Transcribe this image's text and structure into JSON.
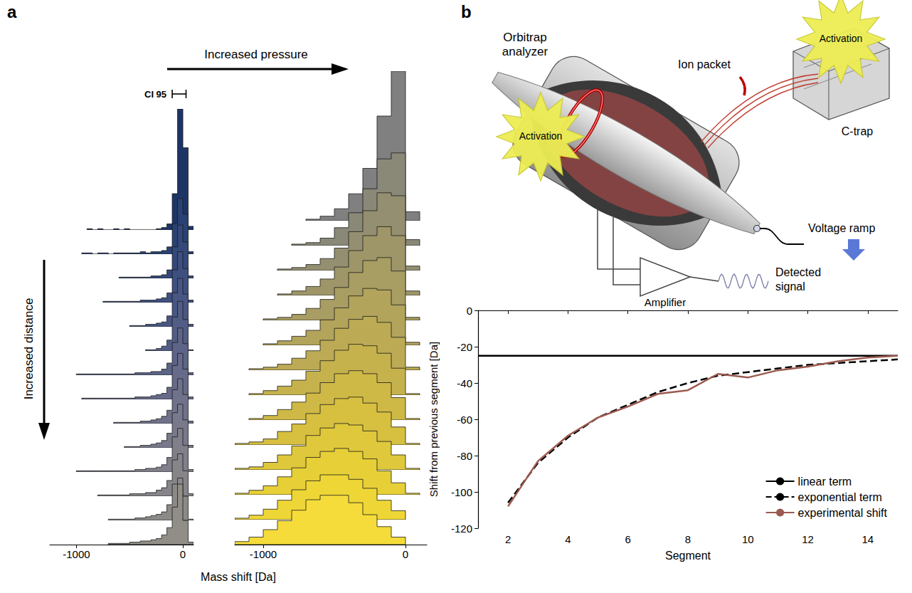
{
  "chart_data": [
    {
      "type": "ridgeline",
      "panel": "a",
      "xlabel": "Mass shift [Da]",
      "ci": {
        "label": "CI 95",
        "range": [
          -100,
          30
        ]
      },
      "arrow_label": "Increased distance",
      "xlim": [
        -1250,
        100
      ],
      "xticks": [
        -1000,
        0
      ],
      "ylim": [
        0,
        100
      ],
      "tick_labels": "x",
      "bins": [
        -1250,
        -1200,
        -1150,
        -1100,
        -1050,
        -1000,
        -950,
        -900,
        -850,
        -800,
        -750,
        -700,
        -650,
        -600,
        -550,
        -500,
        -450,
        -400,
        -350,
        -300,
        -250,
        -200,
        -150,
        -100,
        -50,
        0,
        50,
        100
      ],
      "series": [
        {
          "color": "#1d3566",
          "values": [
            0,
            0,
            0,
            0,
            0,
            0,
            0,
            1,
            0,
            1,
            0,
            0,
            1,
            0,
            1,
            0,
            0,
            0,
            0,
            0,
            1,
            2,
            5,
            30,
            100,
            68,
            3
          ]
        },
        {
          "color": "#2a4273",
          "values": [
            0,
            0,
            0,
            0,
            0,
            0,
            1,
            1,
            0,
            1,
            1,
            0,
            1,
            1,
            1,
            1,
            1,
            2,
            1,
            2,
            2,
            3,
            6,
            25,
            46,
            33,
            2
          ]
        },
        {
          "color": "#34497a",
          "values": [
            0,
            0,
            0,
            0,
            0,
            0,
            0,
            0,
            0,
            0,
            0,
            0,
            0,
            1,
            1,
            1,
            1,
            1,
            1,
            2,
            2,
            3,
            7,
            26,
            44,
            30,
            2
          ]
        },
        {
          "color": "#3e5080",
          "values": [
            0,
            0,
            0,
            0,
            0,
            0,
            0,
            0,
            0,
            0,
            1,
            1,
            1,
            1,
            1,
            1,
            1,
            2,
            2,
            2,
            3,
            4,
            8,
            27,
            42,
            28,
            2
          ]
        },
        {
          "color": "#485684",
          "values": [
            0,
            0,
            0,
            0,
            0,
            0,
            0,
            0,
            0,
            0,
            0,
            0,
            0,
            0,
            0,
            1,
            1,
            1,
            2,
            2,
            3,
            4,
            9,
            28,
            40,
            27,
            2
          ]
        },
        {
          "color": "#525d86",
          "values": [
            0,
            0,
            0,
            0,
            0,
            0,
            0,
            0,
            0,
            0,
            0,
            0,
            0,
            0,
            0,
            0,
            0,
            0,
            1,
            1,
            2,
            4,
            9,
            28,
            41,
            26,
            1
          ]
        },
        {
          "color": "#5c6488",
          "values": [
            0,
            0,
            0,
            0,
            0,
            1,
            1,
            1,
            1,
            1,
            1,
            1,
            1,
            1,
            1,
            1,
            2,
            2,
            2,
            3,
            3,
            5,
            10,
            27,
            39,
            26,
            2
          ]
        },
        {
          "color": "#666b8a",
          "values": [
            0,
            0,
            0,
            0,
            0,
            0,
            1,
            1,
            1,
            1,
            1,
            1,
            1,
            1,
            1,
            1,
            2,
            2,
            2,
            3,
            4,
            5,
            10,
            28,
            38,
            25,
            2
          ]
        },
        {
          "color": "#70728b",
          "values": [
            0,
            0,
            0,
            0,
            0,
            0,
            0,
            0,
            0,
            0,
            0,
            0,
            1,
            1,
            1,
            1,
            1,
            2,
            2,
            3,
            4,
            6,
            11,
            28,
            37,
            24,
            2
          ]
        },
        {
          "color": "#78798b",
          "values": [
            0,
            0,
            0,
            0,
            0,
            0,
            0,
            0,
            0,
            0,
            0,
            0,
            0,
            0,
            1,
            1,
            1,
            2,
            2,
            3,
            4,
            6,
            12,
            29,
            36,
            23,
            2
          ]
        },
        {
          "color": "#807f8a",
          "values": [
            0,
            0,
            0,
            0,
            0,
            1,
            1,
            1,
            1,
            1,
            1,
            1,
            1,
            1,
            1,
            1,
            2,
            2,
            3,
            3,
            4,
            6,
            12,
            29,
            36,
            22,
            2
          ]
        },
        {
          "color": "#878589",
          "values": [
            0,
            0,
            0,
            0,
            0,
            0,
            0,
            0,
            0,
            1,
            1,
            1,
            1,
            1,
            1,
            2,
            2,
            2,
            3,
            3,
            5,
            7,
            13,
            30,
            35,
            21,
            2
          ]
        },
        {
          "color": "#8c8a88",
          "values": [
            0,
            0,
            0,
            0,
            0,
            0,
            0,
            0,
            0,
            0,
            0,
            1,
            1,
            1,
            1,
            1,
            2,
            2,
            3,
            4,
            5,
            7,
            13,
            30,
            35,
            20,
            1
          ]
        },
        {
          "color": "#908e86",
          "values": [
            0,
            0,
            0,
            0,
            0,
            0,
            0,
            0,
            0,
            0,
            0,
            1,
            1,
            1,
            1,
            2,
            2,
            3,
            3,
            4,
            5,
            8,
            14,
            31,
            50,
            20,
            2
          ]
        }
      ]
    },
    {
      "type": "ridgeline",
      "arrow_label": "Increased pressure",
      "xlim": [
        -1200,
        150
      ],
      "xticks": [
        -1000,
        0
      ],
      "ylim": [
        0,
        100
      ],
      "tick_labels": "x",
      "bins": [
        -1200,
        -1100,
        -1000,
        -900,
        -800,
        -700,
        -600,
        -500,
        -400,
        -300,
        -200,
        -100,
        0,
        100
      ],
      "series": [
        {
          "color": "#808080",
          "values": [
            0,
            0,
            0,
            0,
            0,
            1,
            3,
            8,
            18,
            35,
            70,
            100,
            6
          ]
        },
        {
          "color": "#8a8877",
          "values": [
            0,
            0,
            0,
            0,
            1,
            2,
            5,
            12,
            22,
            38,
            58,
            62,
            4
          ]
        },
        {
          "color": "#948f70",
          "values": [
            0,
            0,
            0,
            1,
            2,
            4,
            8,
            15,
            26,
            40,
            52,
            50,
            3
          ]
        },
        {
          "color": "#9e9669",
          "values": [
            0,
            0,
            0,
            1,
            3,
            6,
            11,
            19,
            30,
            40,
            46,
            40,
            3
          ]
        },
        {
          "color": "#a89d62",
          "values": [
            0,
            0,
            1,
            2,
            4,
            8,
            14,
            22,
            32,
            40,
            42,
            33,
            2
          ]
        },
        {
          "color": "#b2a45b",
          "values": [
            0,
            0,
            1,
            3,
            6,
            10,
            17,
            25,
            33,
            38,
            37,
            27,
            2
          ]
        },
        {
          "color": "#bcab54",
          "values": [
            0,
            1,
            2,
            4,
            8,
            13,
            20,
            28,
            34,
            36,
            32,
            22,
            2
          ]
        },
        {
          "color": "#c6b24d",
          "values": [
            0,
            1,
            3,
            6,
            10,
            16,
            23,
            30,
            34,
            33,
            28,
            18,
            1
          ]
        },
        {
          "color": "#cfb946",
          "values": [
            0,
            1,
            3,
            7,
            12,
            18,
            25,
            31,
            33,
            31,
            25,
            15,
            1
          ]
        },
        {
          "color": "#d7c040",
          "values": [
            1,
            2,
            4,
            9,
            14,
            21,
            27,
            31,
            32,
            28,
            22,
            12,
            1
          ]
        },
        {
          "color": "#dfc83b",
          "values": [
            1,
            2,
            5,
            10,
            16,
            23,
            28,
            31,
            30,
            26,
            19,
            10,
            1
          ]
        },
        {
          "color": "#e7cf37",
          "values": [
            1,
            3,
            6,
            12,
            18,
            25,
            29,
            31,
            29,
            24,
            16,
            8,
            1
          ]
        },
        {
          "color": "#eed636",
          "values": [
            1,
            3,
            7,
            13,
            20,
            26,
            30,
            30,
            27,
            21,
            13,
            6,
            0
          ]
        },
        {
          "color": "#f5dc3a",
          "values": [
            2,
            5,
            10,
            16,
            23,
            30,
            33,
            33,
            28,
            20,
            12,
            5,
            0
          ]
        }
      ]
    },
    {
      "type": "line",
      "panel": "b",
      "xlabel": "Segment",
      "ylabel": "Shift from previous segment [Da]",
      "xlim": [
        1,
        15
      ],
      "xticks": [
        2,
        4,
        6,
        8,
        10,
        12,
        14
      ],
      "ylim": [
        -120,
        0
      ],
      "yticks": [
        -120,
        -100,
        -80,
        -60,
        -40,
        -20,
        0
      ],
      "legend": "lower right",
      "series": [
        {
          "name": "linear term",
          "color": "#000000",
          "line_style": "solid",
          "x": [
            1,
            15
          ],
          "values": [
            -25,
            -25
          ]
        },
        {
          "name": "exponential term",
          "color": "#000000",
          "line_style": "dashed",
          "x": [
            2,
            3,
            4,
            5,
            6,
            7,
            8,
            9,
            10,
            11,
            12,
            13,
            14,
            15
          ],
          "values": [
            -106,
            -84,
            -70,
            -59,
            -52,
            -45,
            -40,
            -36,
            -34,
            -32,
            -30,
            -29,
            -28,
            -27
          ]
        },
        {
          "name": "experimental shift",
          "color": "#9c5a50",
          "line_style": "solid",
          "x": [
            2,
            3,
            4,
            5,
            6,
            7,
            8,
            9,
            10,
            11,
            12,
            13,
            14,
            15
          ],
          "values": [
            -108,
            -83,
            -69,
            -59,
            -53,
            -46,
            -44,
            -35,
            -37,
            -33,
            -31,
            -28,
            -26,
            -25
          ]
        }
      ]
    }
  ],
  "diagram": {
    "orbitrap": "Orbitrap analyzer",
    "ion_packet": "Ion packet",
    "c_trap": "C-trap",
    "activation": [
      "Activation",
      "Activation"
    ],
    "voltage_ramp": "Voltage ramp",
    "amplifier": "Amplifier",
    "detected_signal": "Detected signal"
  }
}
